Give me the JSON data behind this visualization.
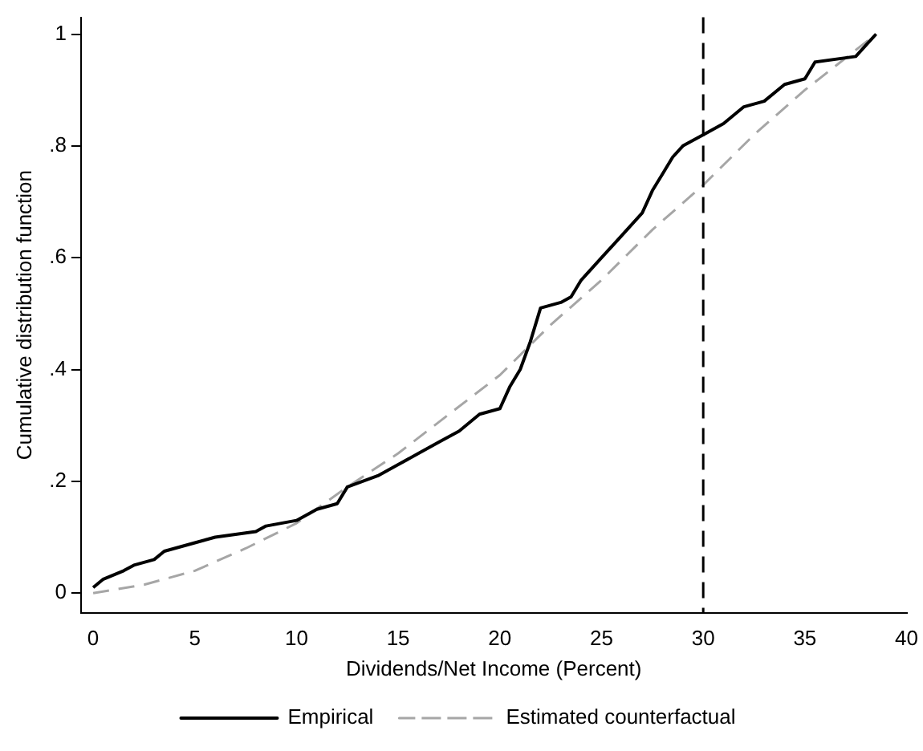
{
  "chart_data": {
    "type": "line",
    "xlabel": "Dividends/Net Income (Percent)",
    "ylabel": "Cumulative distribution function",
    "xlim": [
      -0.6,
      40
    ],
    "xticks": [
      0,
      5,
      10,
      15,
      20,
      25,
      30,
      35,
      40
    ],
    "ylim": [
      -0.035,
      1.03
    ],
    "yticks": [
      0,
      {
        "value": 0.2,
        "label": ".2"
      },
      {
        "value": 0.4,
        "label": ".4"
      },
      {
        "value": 0.6,
        "label": ".6"
      },
      {
        "value": 0.8,
        "label": ".8"
      },
      1
    ],
    "grid": false,
    "legend": "bottom",
    "marker": "none",
    "ref_lines": [
      {
        "axis": "x",
        "value": 30,
        "color": "#000000",
        "line_style": "dashed"
      }
    ],
    "series": [
      {
        "name": "Empirical",
        "color": "#000000",
        "line_style": "solid",
        "x": [
          0,
          0.5,
          1.5,
          2,
          3,
          3.5,
          5,
          6,
          8,
          8.5,
          10,
          11,
          12,
          12.5,
          14,
          15,
          16,
          17,
          18,
          19,
          20,
          20.5,
          21,
          21.5,
          22,
          23,
          23.5,
          24,
          25,
          26,
          27,
          27.5,
          28,
          28.5,
          29,
          30,
          31,
          32,
          33,
          34,
          35,
          35.5,
          37.5,
          38,
          38.5
        ],
        "values": [
          0.01,
          0.025,
          0.04,
          0.05,
          0.06,
          0.075,
          0.09,
          0.1,
          0.11,
          0.12,
          0.13,
          0.15,
          0.16,
          0.19,
          0.21,
          0.23,
          0.25,
          0.27,
          0.29,
          0.32,
          0.33,
          0.37,
          0.4,
          0.45,
          0.51,
          0.52,
          0.53,
          0.56,
          0.6,
          0.64,
          0.68,
          0.72,
          0.75,
          0.78,
          0.8,
          0.82,
          0.84,
          0.87,
          0.88,
          0.91,
          0.92,
          0.95,
          0.96,
          0.98,
          1
        ]
      },
      {
        "name": "Estimated counterfactual",
        "color": "#a6a6a6",
        "line_style": "dashed",
        "x": [
          0,
          2.5,
          5,
          7.5,
          10,
          12.5,
          15,
          17.5,
          20,
          22.5,
          25,
          27.5,
          30,
          32.5,
          35,
          38.5
        ],
        "values": [
          0,
          0.015,
          0.04,
          0.08,
          0.125,
          0.19,
          0.25,
          0.32,
          0.39,
          0.48,
          0.56,
          0.65,
          0.73,
          0.82,
          0.9,
          1
        ]
      }
    ]
  }
}
